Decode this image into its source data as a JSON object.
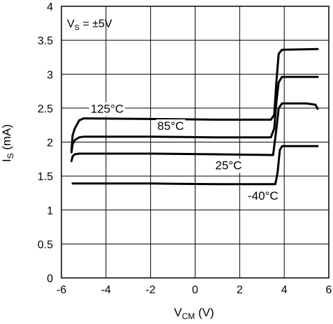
{
  "colors": {
    "background": "#ffffff",
    "axis": "#000000",
    "grid": "#000000",
    "series": "#000000"
  },
  "chart_data": {
    "type": "line",
    "title": "",
    "xlabel": {
      "main": "V",
      "sub": "CM",
      "unit": " (V)"
    },
    "ylabel": {
      "main": "I",
      "sub": "S",
      "unit": " (mA)"
    },
    "xlim": [
      -6,
      6
    ],
    "ylim": [
      0,
      4
    ],
    "x_ticks": [
      {
        "value": -6,
        "label": "-6"
      },
      {
        "value": -4,
        "label": "-4"
      },
      {
        "value": -2,
        "label": "-2"
      },
      {
        "value": 0,
        "label": "0"
      },
      {
        "value": 2,
        "label": "2"
      },
      {
        "value": 4,
        "label": "4"
      },
      {
        "value": 6,
        "label": "6"
      }
    ],
    "y_ticks": [
      {
        "value": 0,
        "label": "0"
      },
      {
        "value": 0.5,
        "label": "0.5"
      },
      {
        "value": 1,
        "label": "1"
      },
      {
        "value": 1.5,
        "label": "1.5"
      },
      {
        "value": 2,
        "label": "2"
      },
      {
        "value": 2.5,
        "label": "2.5"
      },
      {
        "value": 3,
        "label": "3"
      },
      {
        "value": 3.5,
        "label": "3.5"
      },
      {
        "value": 4,
        "label": "4"
      }
    ],
    "grid": true,
    "annotation": {
      "main": "V",
      "sub": "S",
      "rest": " = ±5V",
      "position": "top-left"
    },
    "series": [
      {
        "name": "125°C",
        "points": [
          [
            -5.55,
            1.87
          ],
          [
            -5.5,
            2.1
          ],
          [
            -5.4,
            2.2
          ],
          [
            -5.2,
            2.32
          ],
          [
            -5.0,
            2.35
          ],
          [
            -2,
            2.34
          ],
          [
            1,
            2.33
          ],
          [
            3.4,
            2.33
          ],
          [
            3.55,
            2.4
          ],
          [
            3.65,
            2.9
          ],
          [
            3.75,
            3.3
          ],
          [
            3.9,
            3.36
          ],
          [
            5.5,
            3.37
          ]
        ]
      },
      {
        "name": "85°C",
        "points": [
          [
            -5.55,
            1.85
          ],
          [
            -5.5,
            1.97
          ],
          [
            -5.4,
            2.03
          ],
          [
            -5.2,
            2.07
          ],
          [
            -5.0,
            2.08
          ],
          [
            -2,
            2.08
          ],
          [
            1,
            2.07
          ],
          [
            3.4,
            2.07
          ],
          [
            3.55,
            2.2
          ],
          [
            3.65,
            2.6
          ],
          [
            3.75,
            2.88
          ],
          [
            3.9,
            2.96
          ],
          [
            5.5,
            2.96
          ]
        ]
      },
      {
        "name": "25°C",
        "points": [
          [
            -5.55,
            1.72
          ],
          [
            -5.5,
            1.79
          ],
          [
            -5.4,
            1.82
          ],
          [
            -5.2,
            1.83
          ],
          [
            -2,
            1.83
          ],
          [
            1,
            1.82
          ],
          [
            3.5,
            1.81
          ],
          [
            3.65,
            2.2
          ],
          [
            3.75,
            2.5
          ],
          [
            3.9,
            2.57
          ],
          [
            5.0,
            2.57
          ],
          [
            5.4,
            2.55
          ],
          [
            5.5,
            2.49
          ]
        ]
      },
      {
        "name": "-40°C",
        "points": [
          [
            -5.5,
            1.39
          ],
          [
            -2,
            1.39
          ],
          [
            1,
            1.38
          ],
          [
            3.6,
            1.38
          ],
          [
            3.7,
            1.55
          ],
          [
            3.8,
            1.88
          ],
          [
            3.9,
            1.94
          ],
          [
            5.5,
            1.94
          ]
        ]
      }
    ],
    "series_labels": [
      {
        "text": "125°C",
        "x": -3.95,
        "y": 2.43
      },
      {
        "text": "85°C",
        "x": -1.1,
        "y": 2.18
      },
      {
        "text": "25°C",
        "x": 1.5,
        "y": 1.6
      },
      {
        "text": "-40°C",
        "x": 3.05,
        "y": 1.15
      }
    ]
  }
}
